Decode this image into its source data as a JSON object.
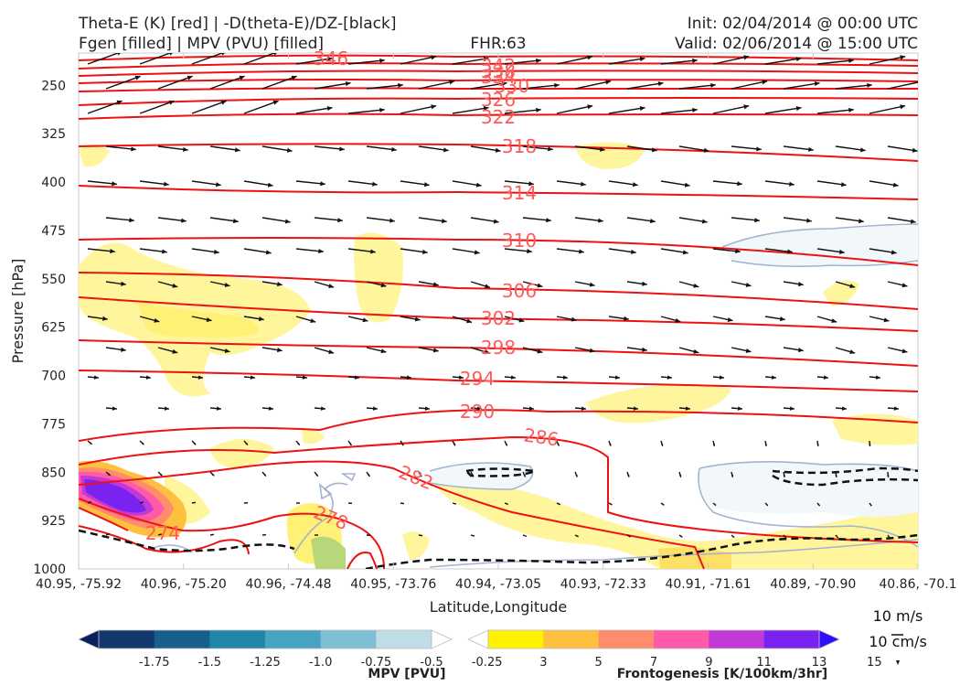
{
  "header": {
    "title_line1": "Theta-E (K) [red] | -D(theta-E)/DZ-[black]",
    "title_line2": "Fgen [filled] | MPV (PVU) [filled]",
    "fhr": "FHR:63",
    "init": "Init: 02/04/2014 @ 00:00 UTC",
    "valid": "Valid: 02/06/2014 @ 15:00 UTC"
  },
  "chart_data": {
    "type": "cross-section",
    "xlabel": "Latitude,Longitude",
    "ylabel": "Pressure [hPa]",
    "y_ticks": [
      250,
      325,
      400,
      475,
      550,
      625,
      700,
      775,
      850,
      925,
      1000
    ],
    "ylim": [
      1000,
      200
    ],
    "x_ticks": [
      "40.95, -75.92",
      "40.96, -75.20",
      "40.96, -74.48",
      "40.95, -73.76",
      "40.94, -73.05",
      "40.93, -72.33",
      "40.91, -71.61",
      "40.89, -70.90",
      "40.86, -70.1"
    ],
    "theta_e_labels": [
      "346",
      "342",
      "338",
      "334",
      "330",
      "326",
      "322",
      "318",
      "314",
      "310",
      "306",
      "302",
      "298",
      "294",
      "290",
      "286",
      "282",
      "278",
      "274"
    ],
    "colors": {
      "theta_e": "#ee1111",
      "theta_e_label": "#ff5a5a",
      "dtheta_dz": "#111111",
      "mpv_contour": "#a3b4d0"
    },
    "mpv_colorbar": {
      "title": "MPV [PVU]",
      "ticks": [
        "-1.75",
        "-1.5",
        "-1.25",
        "-1.0",
        "-0.75",
        "-0.5",
        "-0.25"
      ],
      "colors": [
        "#0a1f5c",
        "#12386e",
        "#175f8c",
        "#2186a8",
        "#47a3c2",
        "#7fbfd4",
        "#bfdde6",
        "#ffffff"
      ]
    },
    "fgen_colorbar": {
      "title": "Frontogenesis [K/100km/3hr]",
      "ticks": [
        "3",
        "5",
        "7",
        "9",
        "11",
        "13",
        "15"
      ],
      "colors": [
        "#ffffff",
        "#fff200",
        "#ffc040",
        "#ff8c6a",
        "#ff5aa8",
        "#c23ad6",
        "#7a22f0",
        "#2c10ff"
      ]
    },
    "wind_reference": {
      "horizontal": "10 m/s",
      "vertical": "10 cm/s"
    }
  }
}
